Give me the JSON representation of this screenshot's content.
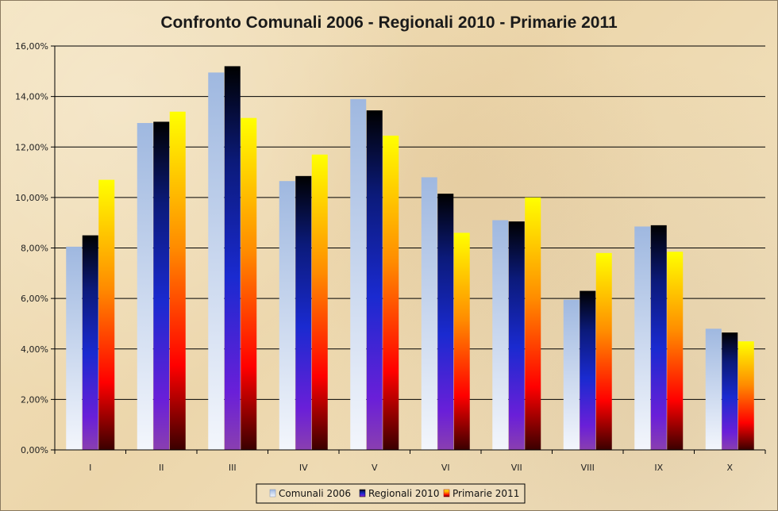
{
  "chart_data": {
    "type": "bar",
    "title": "Confronto Comunali 2006 - Regionali 2010 - Primarie 2011",
    "xlabel": "",
    "ylabel": "",
    "ylim": [
      0,
      16
    ],
    "ytick_values": [
      0,
      2,
      4,
      6,
      8,
      10,
      12,
      14,
      16
    ],
    "ytick_labels": [
      "0,00%",
      "2,00%",
      "4,00%",
      "6,00%",
      "8,00%",
      "10,00%",
      "12,00%",
      "14,00%",
      "16,00%"
    ],
    "categories": [
      "I",
      "II",
      "III",
      "IV",
      "V",
      "VI",
      "VII",
      "VIII",
      "IX",
      "X"
    ],
    "series": [
      {
        "name": "Comunali 2006",
        "values": [
          8.05,
          12.95,
          14.95,
          10.65,
          13.9,
          10.8,
          9.1,
          5.95,
          8.85,
          4.8
        ]
      },
      {
        "name": "Regionali 2010",
        "values": [
          8.5,
          13.0,
          15.2,
          10.85,
          13.45,
          10.15,
          9.05,
          6.3,
          8.9,
          4.65
        ]
      },
      {
        "name": "Primarie 2011",
        "values": [
          10.7,
          13.4,
          13.15,
          11.7,
          12.45,
          8.6,
          10.0,
          7.8,
          7.85,
          4.3
        ]
      }
    ],
    "grid": true,
    "legend_position": "bottom"
  }
}
